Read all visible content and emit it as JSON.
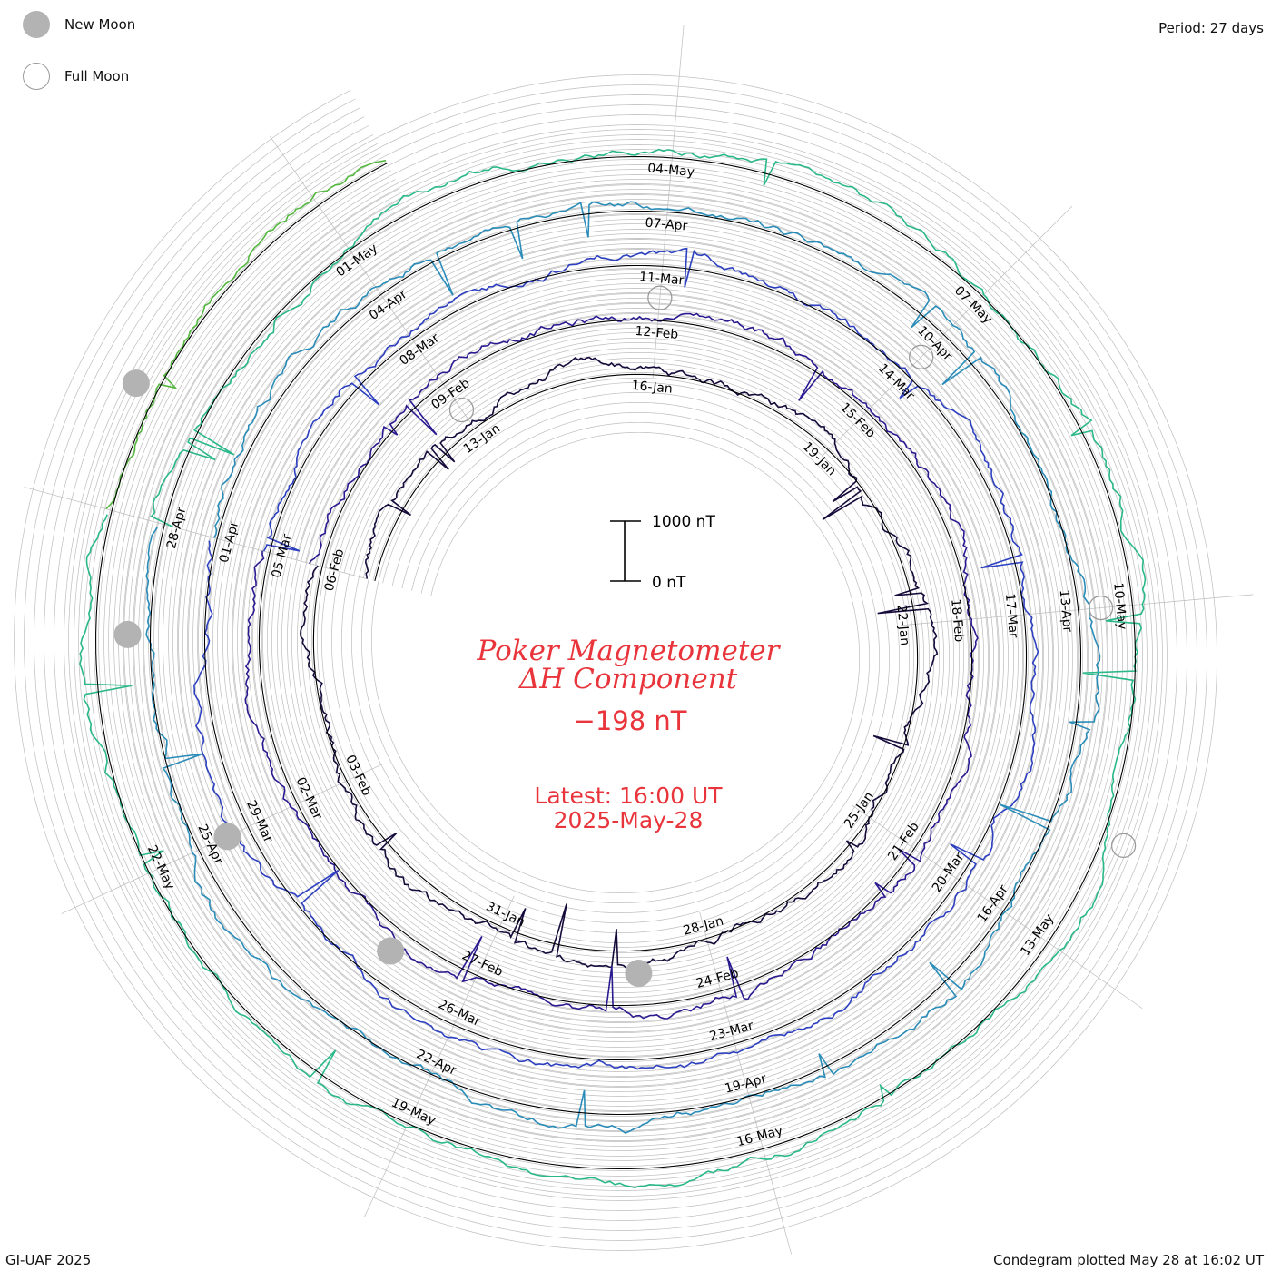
{
  "legend": {
    "new_moon_label": "New Moon",
    "full_moon_label": "Full Moon",
    "new_moon_color": "#b3b3b3",
    "full_moon_color": "#9a9a9a"
  },
  "header": {
    "period": "Period: 27 days"
  },
  "footer": {
    "credit": "GI-UAF 2025",
    "plotted": "Condegram plotted May 28 at 16:02 UT"
  },
  "chart_data": {
    "type": "line",
    "layout": "condegram-spiral",
    "title_line1": "Poker Magnetometer",
    "title_line2": "ΔH Component",
    "current_value": "−198 nT",
    "latest_label": "Latest: 16:00 UT",
    "latest_date": "2025-May-28",
    "scale_bar": {
      "top": "1000 nT",
      "bottom": "0 nT"
    },
    "period_days": 27,
    "start_date": "2025-01-10",
    "end_date": "2025-05-28",
    "date_labels": [
      "13-Jan",
      "16-Jan",
      "19-Jan",
      "22-Jan",
      "25-Jan",
      "28-Jan",
      "31-Jan",
      "03-Feb",
      "06-Feb",
      "09-Feb",
      "12-Feb",
      "15-Feb",
      "18-Feb",
      "21-Feb",
      "24-Feb",
      "27-Feb",
      "02-Mar",
      "05-Mar",
      "08-Mar",
      "11-Mar",
      "14-Mar",
      "17-Mar",
      "20-Mar",
      "23-Mar",
      "26-Mar",
      "29-Mar",
      "01-Apr",
      "04-Apr",
      "07-Apr",
      "10-Apr",
      "13-Apr",
      "16-Apr",
      "19-Apr",
      "22-Apr",
      "25-Apr",
      "28-Apr",
      "01-May",
      "04-May",
      "07-May",
      "10-May",
      "13-May",
      "16-May",
      "19-May",
      "22-May"
    ],
    "new_moons": [
      "2025-01-29",
      "2025-02-28",
      "2025-03-29",
      "2025-04-27",
      "2025-05-26"
    ],
    "full_moons": [
      "2025-01-13",
      "2025-02-12",
      "2025-03-14",
      "2025-04-13",
      "2025-05-12"
    ],
    "cycle_colors": [
      "#150a3a",
      "#2a1a90",
      "#2d40c0",
      "#2a8cb8",
      "#2ab88a",
      "#55b840",
      "#a8b820",
      "#b89020",
      "#b85a10",
      "#b81010"
    ],
    "gridline_color": "#bdbdbd",
    "baseline_color": "#000000"
  }
}
